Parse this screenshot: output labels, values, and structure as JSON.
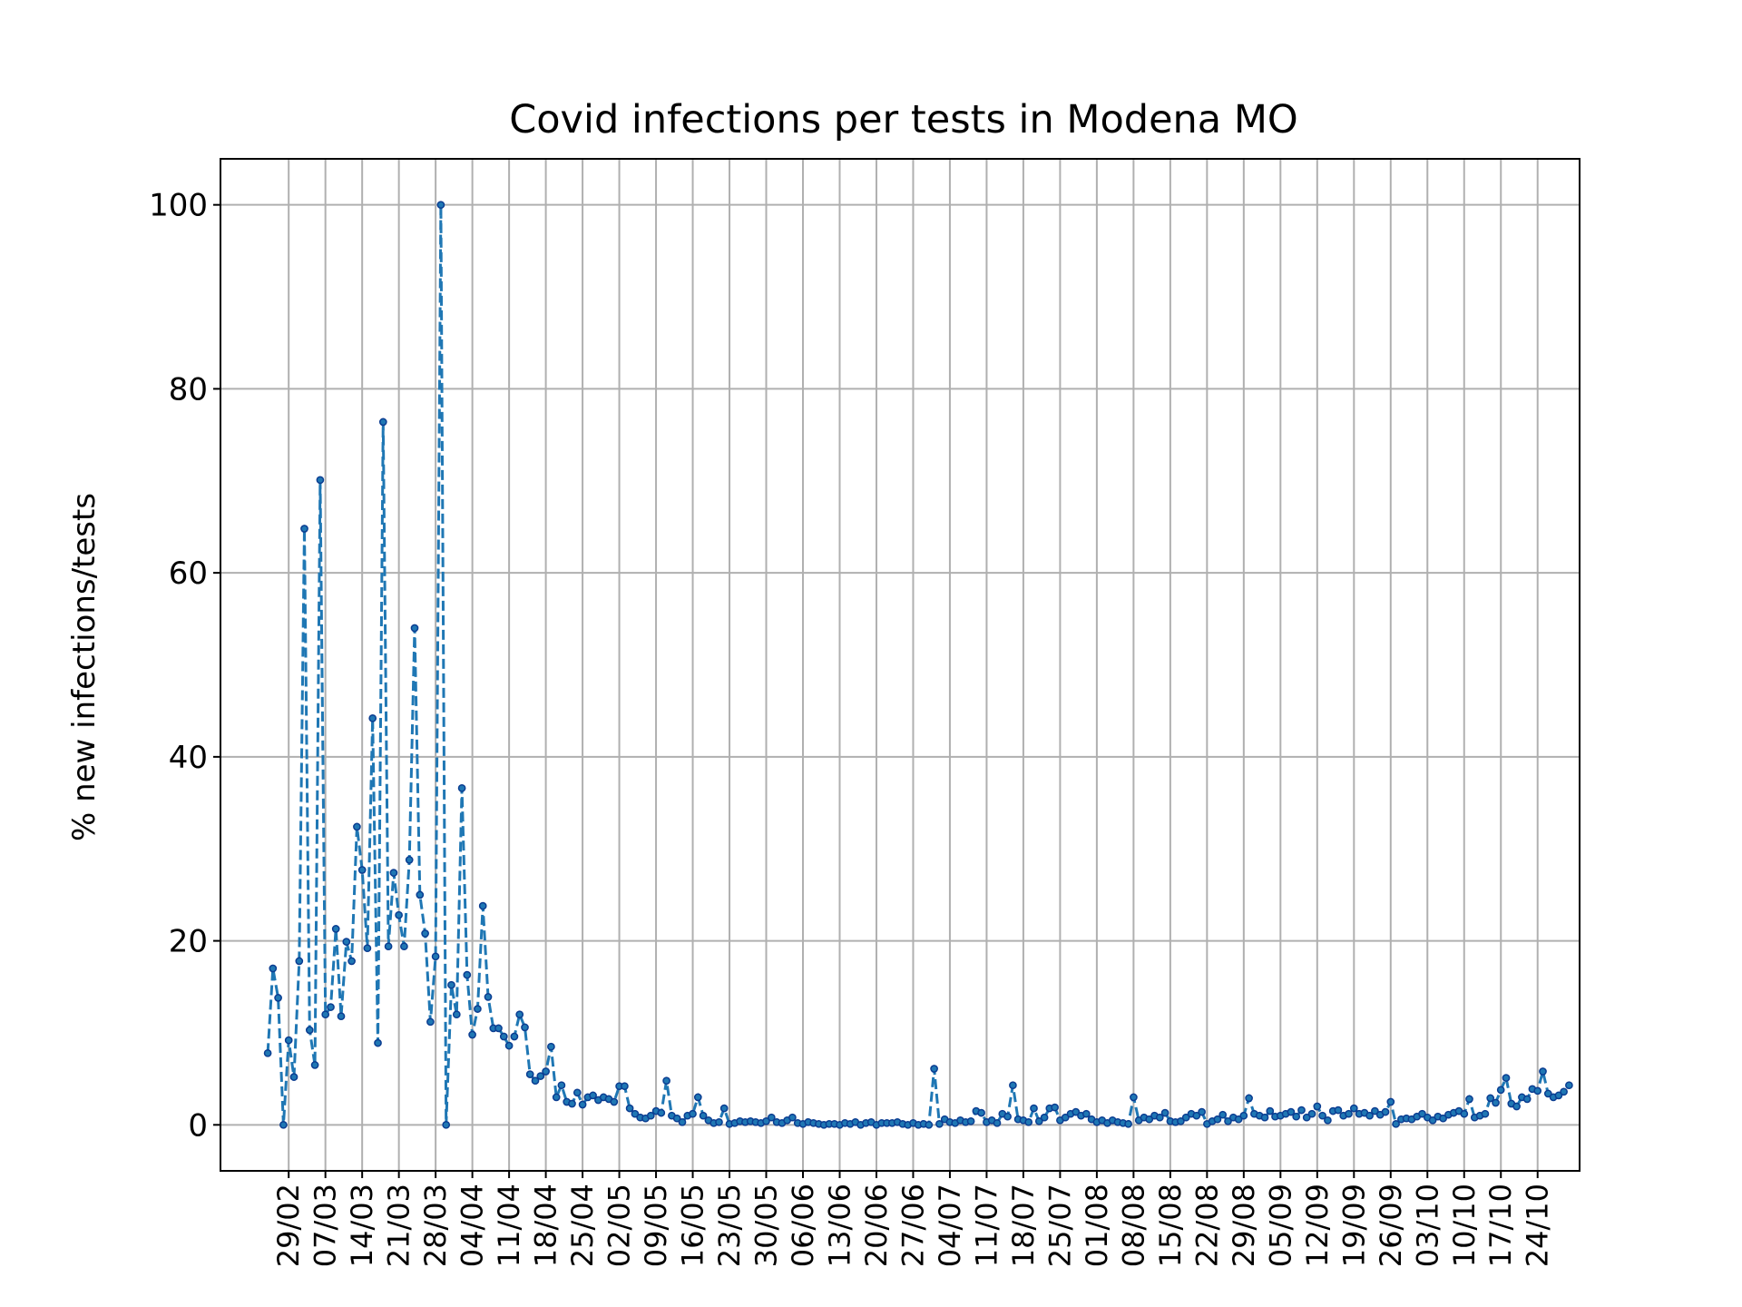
{
  "chart_data": {
    "type": "line",
    "title": "Covid infections per tests in Modena MO",
    "ylabel": "% new infections/tests",
    "xlabel": "",
    "ylim": [
      -5,
      105
    ],
    "yticks": [
      0,
      20,
      40,
      60,
      80,
      100
    ],
    "xlim": [
      "2020-02-16",
      "2020-11-01"
    ],
    "grid": true,
    "line_color": "#1f77b4",
    "line_style": "dashed",
    "marker": "dot",
    "xtick_dates": [
      "2020-02-29",
      "2020-03-07",
      "2020-03-14",
      "2020-03-21",
      "2020-03-28",
      "2020-04-04",
      "2020-04-11",
      "2020-04-18",
      "2020-04-25",
      "2020-05-02",
      "2020-05-09",
      "2020-05-16",
      "2020-05-23",
      "2020-05-30",
      "2020-06-06",
      "2020-06-13",
      "2020-06-20",
      "2020-06-27",
      "2020-07-04",
      "2020-07-11",
      "2020-07-18",
      "2020-07-25",
      "2020-08-01",
      "2020-08-08",
      "2020-08-15",
      "2020-08-22",
      "2020-08-29",
      "2020-09-05",
      "2020-09-12",
      "2020-09-19",
      "2020-09-26",
      "2020-10-03",
      "2020-10-10",
      "2020-10-17",
      "2020-10-24"
    ],
    "xtick_labels": [
      "29/02",
      "07/03",
      "14/03",
      "21/03",
      "28/03",
      "04/04",
      "11/04",
      "18/04",
      "25/04",
      "02/05",
      "09/05",
      "16/05",
      "23/05",
      "30/05",
      "06/06",
      "13/06",
      "20/06",
      "27/06",
      "04/07",
      "11/07",
      "18/07",
      "25/07",
      "01/08",
      "08/08",
      "15/08",
      "22/08",
      "29/08",
      "05/09",
      "12/09",
      "19/09",
      "26/09",
      "03/10",
      "10/10",
      "17/10",
      "24/10"
    ],
    "series": [
      {
        "start_date": "2020-02-25",
        "values": [
          7.8,
          17.0,
          13.8,
          0.0,
          9.2,
          5.2,
          17.8,
          64.8,
          10.3,
          6.5,
          70.1,
          12.0,
          12.8,
          21.3,
          11.8,
          19.9,
          17.8,
          32.4,
          27.7,
          19.2,
          44.2,
          8.9,
          76.4,
          19.4,
          27.4,
          22.8,
          19.4,
          28.8,
          54.0,
          25.0,
          20.8,
          11.2,
          18.3,
          100.0,
          0.0,
          15.2,
          12.0,
          36.6,
          16.3,
          9.8,
          12.6,
          23.8,
          13.9,
          10.5,
          10.5,
          9.6,
          8.6,
          9.6,
          12.0,
          10.6,
          5.5,
          4.8,
          5.3,
          5.8,
          8.5,
          3.0,
          4.3,
          2.5,
          2.3,
          3.5,
          2.2,
          3.0,
          3.2,
          2.7,
          3.0,
          2.8,
          2.5,
          4.2,
          4.2,
          1.8,
          1.2,
          0.8,
          0.7,
          1.0,
          1.5,
          1.3,
          4.8,
          1.0,
          0.7,
          0.3,
          1.0,
          1.2,
          3.0,
          1.0,
          0.5,
          0.2,
          0.3,
          1.8,
          0.1,
          0.2,
          0.4,
          0.3,
          0.4,
          0.3,
          0.2,
          0.4,
          0.8,
          0.3,
          0.2,
          0.5,
          0.8,
          0.2,
          0.1,
          0.3,
          0.2,
          0.1,
          0.0,
          0.1,
          0.1,
          0.0,
          0.2,
          0.1,
          0.3,
          0.0,
          0.2,
          0.3,
          0.0,
          0.2,
          0.2,
          0.2,
          0.3,
          0.1,
          0.0,
          0.2,
          0.0,
          0.1,
          0.0,
          6.1,
          0.1,
          0.6,
          0.3,
          0.2,
          0.5,
          0.3,
          0.4,
          1.5,
          1.3,
          0.3,
          0.5,
          0.2,
          1.2,
          0.9,
          4.3,
          0.6,
          0.5,
          0.3,
          1.8,
          0.4,
          0.8,
          1.8,
          1.9,
          0.5,
          0.8,
          1.2,
          1.4,
          1.0,
          1.2,
          0.6,
          0.3,
          0.5,
          0.2,
          0.5,
          0.3,
          0.2,
          0.1,
          3.0,
          0.5,
          0.8,
          0.6,
          1.0,
          0.8,
          1.3,
          0.4,
          0.3,
          0.4,
          0.8,
          1.2,
          1.0,
          1.4,
          0.1,
          0.4,
          0.6,
          1.1,
          0.4,
          0.8,
          0.6,
          1.0,
          2.9,
          1.2,
          1.0,
          0.8,
          1.5,
          0.9,
          1.0,
          1.2,
          1.4,
          0.9,
          1.6,
          0.8,
          1.2,
          2.0,
          1.0,
          0.5,
          1.5,
          1.6,
          1.0,
          1.2,
          1.8,
          1.2,
          1.3,
          1.0,
          1.5,
          1.1,
          1.4,
          2.5,
          0.1,
          0.6,
          0.7,
          0.6,
          0.9,
          1.2,
          0.8,
          0.5,
          0.9,
          0.7,
          1.1,
          1.3,
          1.5,
          1.2,
          2.8,
          0.8,
          1.0,
          1.2,
          2.9,
          2.4,
          3.8,
          5.1,
          2.3,
          2.0,
          3.0,
          2.8,
          3.9,
          3.7,
          5.8,
          3.4,
          3.0,
          3.2,
          3.6,
          4.3
        ]
      }
    ]
  }
}
